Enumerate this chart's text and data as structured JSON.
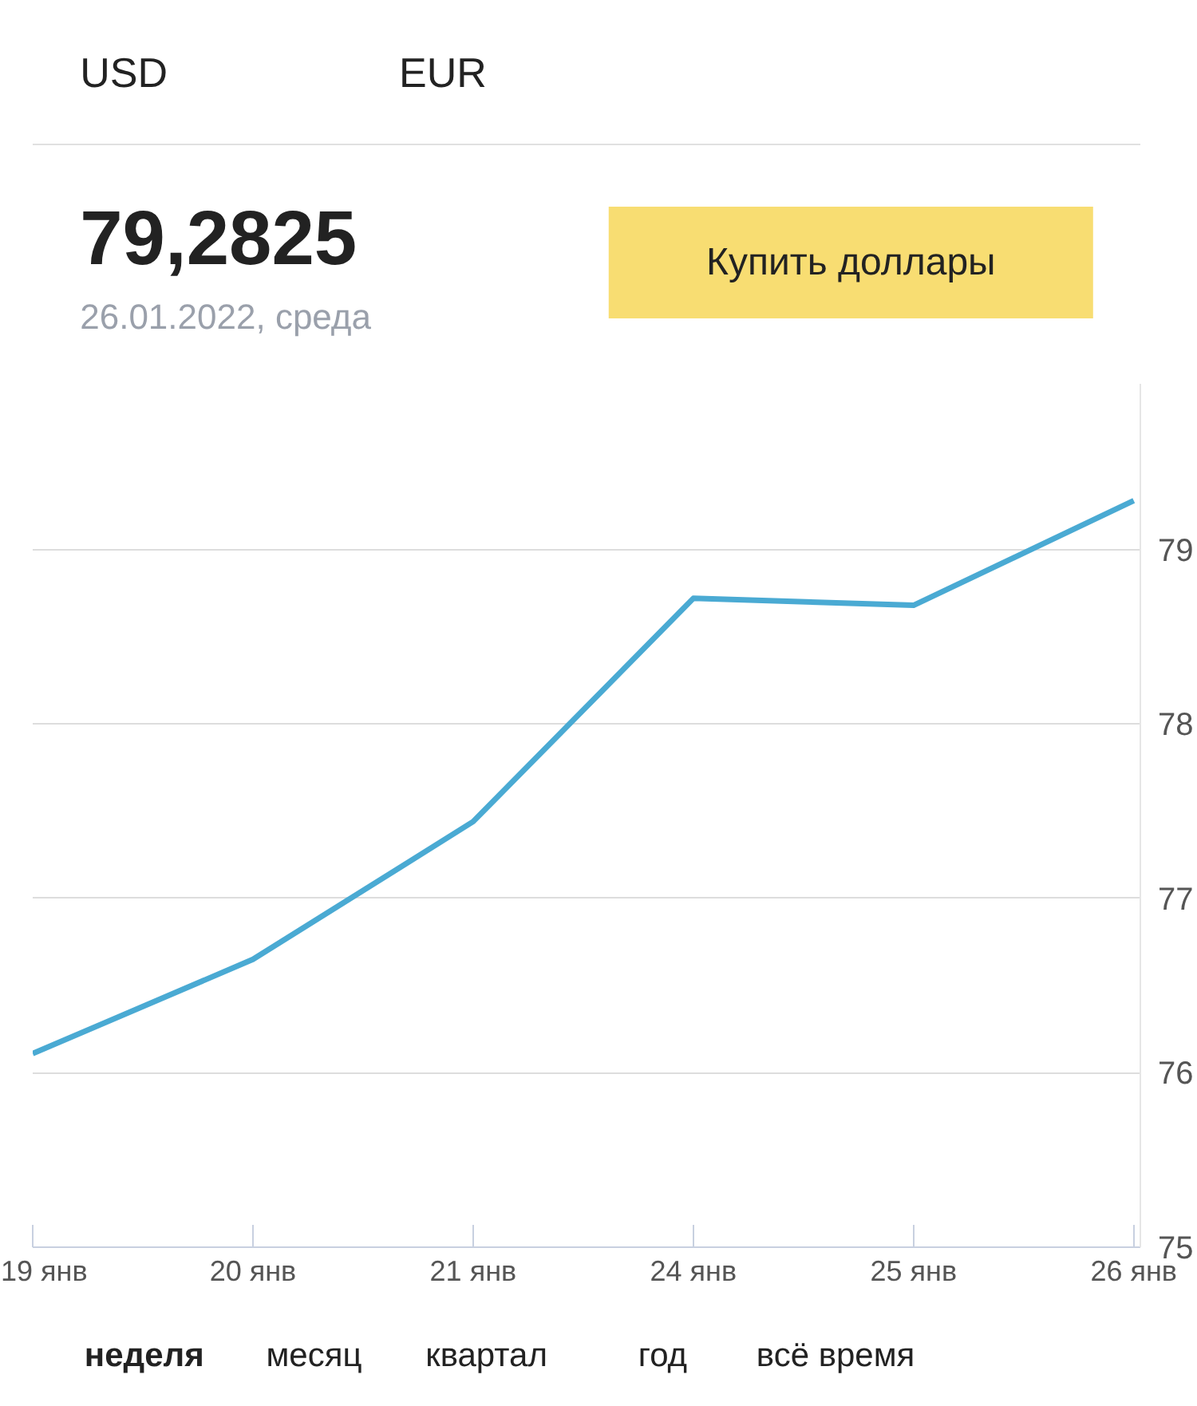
{
  "chart_data": {
    "type": "line",
    "title": "79,2825",
    "subtitle": "26.01.2022, среда",
    "categories": [
      "19 янв",
      "20 янв",
      "21 янв",
      "24 янв",
      "25 янв",
      "26 янв"
    ],
    "series": [
      {
        "color": "#4aaad3",
        "values": [
          76.11,
          76.65,
          77.44,
          78.72,
          78.68,
          79.28
        ]
      }
    ],
    "ylim": [
      75,
      79.95
    ],
    "yticks": [
      75,
      76,
      77,
      78,
      79
    ],
    "grid": "y",
    "marker": "none",
    "line_style": "solid",
    "annotations": [
      "USD",
      "EUR",
      "Купить доллары",
      "неделя",
      "месяц",
      "квартал",
      "год",
      "всё время"
    ]
  }
}
